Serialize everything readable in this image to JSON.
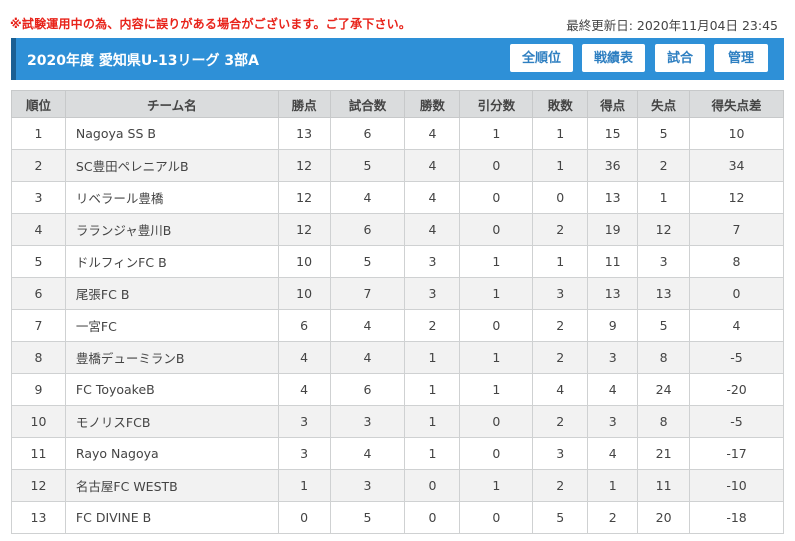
{
  "notice": "※試験運用中の為、内容に誤りがある場合がございます。ご了承下さい。",
  "updated": "最終更新日: 2020年11月04日 23:45",
  "header": {
    "title": "2020年度 愛知県U-13リーグ 3部A",
    "buttons": {
      "standings": "全順位",
      "record": "戦績表",
      "matches": "試合",
      "admin": "管理"
    }
  },
  "colors": {
    "header_bg": "#2e90d7",
    "notice": "#e8231a",
    "button_text": "#2e7fc1"
  },
  "table": {
    "headers": [
      "順位",
      "チーム名",
      "勝点",
      "試合数",
      "勝数",
      "引分数",
      "敗数",
      "得点",
      "失点",
      "得失点差"
    ],
    "rows": [
      [
        "1",
        "Nagoya SS B",
        "13",
        "6",
        "4",
        "1",
        "1",
        "15",
        "5",
        "10"
      ],
      [
        "2",
        "SC豊田ペレニアルB",
        "12",
        "5",
        "4",
        "0",
        "1",
        "36",
        "2",
        "34"
      ],
      [
        "3",
        "リベラール豊橋",
        "12",
        "4",
        "4",
        "0",
        "0",
        "13",
        "1",
        "12"
      ],
      [
        "4",
        "ラランジャ豊川B",
        "12",
        "6",
        "4",
        "0",
        "2",
        "19",
        "12",
        "7"
      ],
      [
        "5",
        "ドルフィンFC B",
        "10",
        "5",
        "3",
        "1",
        "1",
        "11",
        "3",
        "8"
      ],
      [
        "6",
        "尾張FC B",
        "10",
        "7",
        "3",
        "1",
        "3",
        "13",
        "13",
        "0"
      ],
      [
        "7",
        "一宮FC",
        "6",
        "4",
        "2",
        "0",
        "2",
        "9",
        "5",
        "4"
      ],
      [
        "8",
        "豊橋デューミランB",
        "4",
        "4",
        "1",
        "1",
        "2",
        "3",
        "8",
        "-5"
      ],
      [
        "9",
        "FC ToyoakeB",
        "4",
        "6",
        "1",
        "1",
        "4",
        "4",
        "24",
        "-20"
      ],
      [
        "10",
        "モノリスFCB",
        "3",
        "3",
        "1",
        "0",
        "2",
        "3",
        "8",
        "-5"
      ],
      [
        "11",
        "Rayo Nagoya",
        "3",
        "4",
        "1",
        "0",
        "3",
        "4",
        "21",
        "-17"
      ],
      [
        "12",
        "名古屋FC WESTB",
        "1",
        "3",
        "0",
        "1",
        "2",
        "1",
        "11",
        "-10"
      ],
      [
        "13",
        "FC DIVINE B",
        "0",
        "5",
        "0",
        "0",
        "5",
        "2",
        "20",
        "-18"
      ]
    ]
  }
}
